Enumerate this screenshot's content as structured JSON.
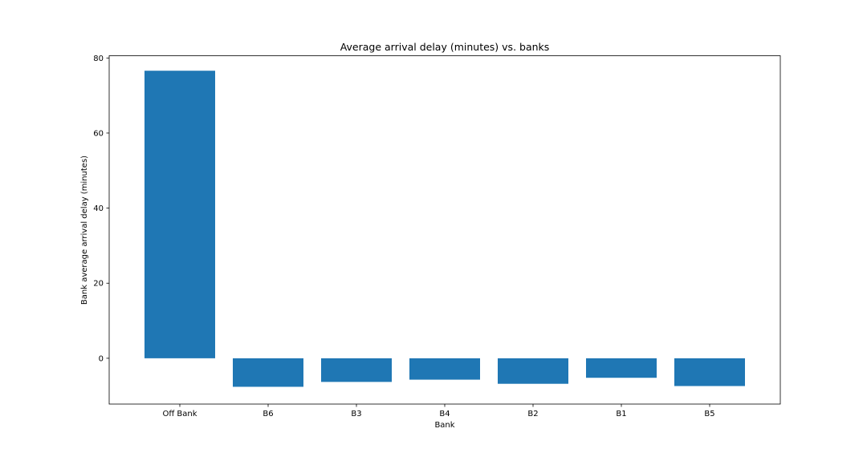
{
  "chart_data": {
    "type": "bar",
    "title": "Average arrival delay (minutes) vs. banks",
    "xlabel": "Bank",
    "ylabel": "Bank average arrival delay (minutes)",
    "categories": [
      "Off Bank",
      "B6",
      "B3",
      "B4",
      "B2",
      "B1",
      "B5"
    ],
    "values": [
      76.6,
      -7.6,
      -6.3,
      -5.7,
      -6.8,
      -5.2,
      -7.4
    ],
    "ylim": [
      -12.2,
      80.6
    ],
    "yticks": [
      0,
      20,
      40,
      60,
      80
    ],
    "grid": false,
    "legend": "none",
    "bar_color": "#1f77b4"
  }
}
